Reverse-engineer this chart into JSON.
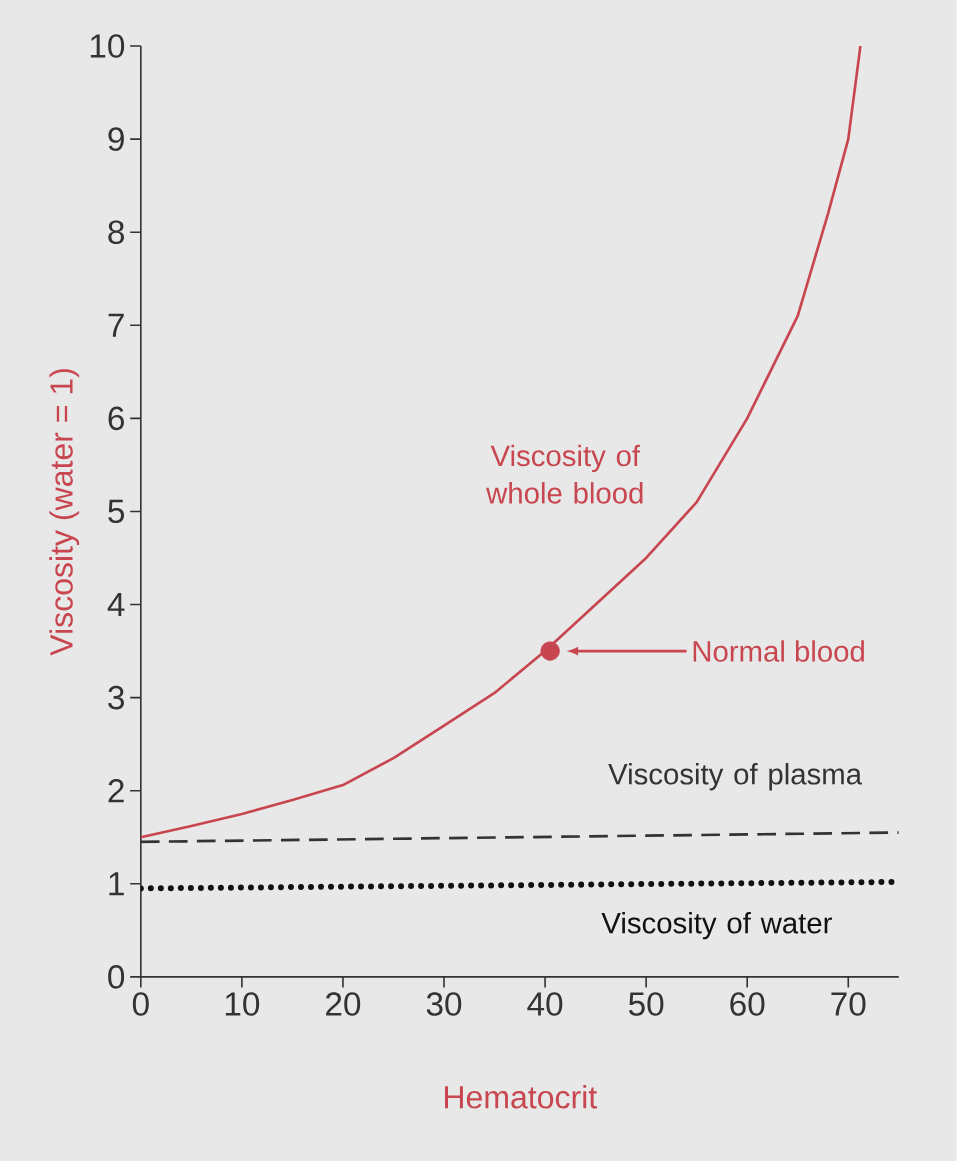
{
  "chart_data": {
    "type": "line",
    "xlabel": "Hematocrit",
    "ylabel": "Viscosity (water = 1)",
    "xlim": [
      0,
      75
    ],
    "ylim": [
      0,
      10
    ],
    "xticks": [
      0,
      10,
      20,
      30,
      40,
      50,
      60,
      70
    ],
    "yticks": [
      0,
      1,
      2,
      3,
      4,
      5,
      6,
      7,
      8,
      9,
      10
    ],
    "grid": false,
    "series": [
      {
        "name": "Viscosity of whole blood",
        "type": "line",
        "line_style": "solid",
        "color": "#c8464f",
        "x": [
          0,
          5,
          10,
          15,
          20,
          25,
          30,
          35,
          40,
          45,
          50,
          55,
          60,
          65,
          68,
          70,
          71.2
        ],
        "values": [
          1.5,
          1.62,
          1.75,
          1.9,
          2.06,
          2.35,
          2.7,
          3.05,
          3.5,
          4.0,
          4.5,
          5.1,
          6.0,
          7.1,
          8.2,
          9.0,
          10.0
        ]
      },
      {
        "name": "Viscosity of plasma",
        "type": "line",
        "line_style": "dashed",
        "color": "#333333",
        "x": [
          0,
          75
        ],
        "values": [
          1.45,
          1.55
        ]
      },
      {
        "name": "Viscosity of water",
        "type": "line",
        "line_style": "dotted",
        "color": "#111111",
        "x": [
          0,
          75
        ],
        "values": [
          0.95,
          1.02
        ]
      },
      {
        "type": "scatter",
        "marker": "circle",
        "color": "#c8464f",
        "x": [
          40.5
        ],
        "values": [
          3.5
        ]
      }
    ],
    "annotations": [
      "Normal blood"
    ]
  }
}
